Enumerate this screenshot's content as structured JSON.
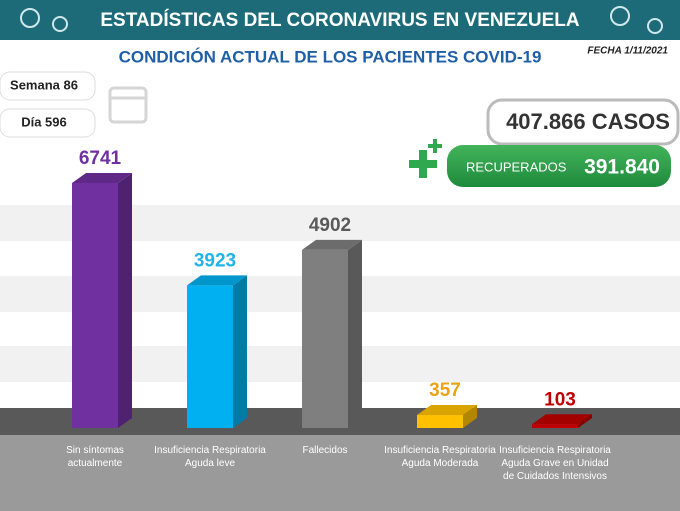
{
  "header": {
    "title": "ESTADÍSTICAS DEL CORONAVIRUS EN VENEZUELA",
    "subtitle": "CONDICIÓN ACTUAL DE LOS PACIENTES COVID-19",
    "date": "FECHA 1/11/2021"
  },
  "badges": {
    "week": "Semana 86",
    "day": "Día 596"
  },
  "totals": {
    "cases": "407.866 CASOS",
    "recovered_label": "RECUPERADOS",
    "recovered": "391.840"
  },
  "chart_data": {
    "type": "bar",
    "categories": [
      "Sin síntomas actualmente",
      "Insuficiencia Respiratoria Aguda leve",
      "Fallecidos",
      "Insuficiencia Respiratoria Aguda Moderada",
      "Insuficiencia Respiratoria Aguda Grave en Unidad de Cuidados Intensivos"
    ],
    "values": [
      6741,
      3923,
      4902,
      357,
      103
    ],
    "colors": [
      "#7030a0",
      "#00b0f0",
      "#7f7f7f",
      "#ffc000",
      "#c00000"
    ],
    "label_colors": [
      "#7030a0",
      "#1fb4ec",
      "#595959",
      "#e8a317",
      "#c00000"
    ]
  }
}
